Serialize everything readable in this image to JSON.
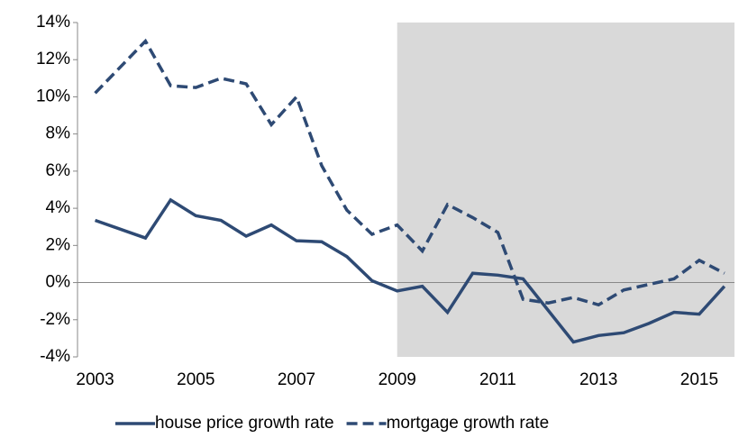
{
  "chart_data": {
    "type": "line",
    "xlim": [
      2002.65,
      2015.7
    ],
    "xticks": [
      2003,
      2005,
      2007,
      2009,
      2011,
      2013,
      2015
    ],
    "ylim": [
      -4,
      14
    ],
    "yticks": [
      {
        "value": -4,
        "label": "-4%"
      },
      {
        "value": -2,
        "label": "-2%"
      },
      {
        "value": 0,
        "label": "0%"
      },
      {
        "value": 2,
        "label": "2%"
      },
      {
        "value": 4,
        "label": "4%"
      },
      {
        "value": 6,
        "label": "6%"
      },
      {
        "value": 8,
        "label": "8%"
      },
      {
        "value": 10,
        "label": "10%"
      },
      {
        "value": 12,
        "label": "12%"
      },
      {
        "value": 14,
        "label": "14%"
      }
    ],
    "shaded_xrange": [
      2009,
      2015.7
    ],
    "shade_color": "#d9d9d9",
    "legend": "bottom",
    "series": [
      {
        "name": "house price growth rate",
        "color": "#2e4a74",
        "dash": false,
        "x": [
          2003,
          2004,
          2004.5,
          2005,
          2005.5,
          2006,
          2006.5,
          2007,
          2007.5,
          2008,
          2008.5,
          2009,
          2009.5,
          2010,
          2010.5,
          2011,
          2011.5,
          2012.5,
          2013,
          2013.5,
          2014,
          2014.5,
          2015,
          2015.5
        ],
        "values": [
          3.35,
          2.4,
          4.45,
          3.6,
          3.35,
          2.5,
          3.1,
          2.25,
          2.2,
          1.4,
          0.1,
          -0.45,
          -0.2,
          -1.6,
          0.5,
          0.4,
          0.2,
          -3.2,
          -2.85,
          -2.7,
          -2.2,
          -1.6,
          -1.7,
          -0.2
        ]
      },
      {
        "name": "mortgage growth rate",
        "color": "#2e4a74",
        "dash": true,
        "x": [
          2003,
          2004,
          2004.5,
          2005,
          2005.5,
          2006,
          2006.5,
          2007,
          2007.5,
          2008,
          2008.5,
          2009,
          2009.5,
          2010,
          2010.5,
          2011,
          2011.5,
          2012,
          2012.5,
          2013,
          2013.5,
          2014,
          2014.5,
          2015,
          2015.5
        ],
        "values": [
          10.2,
          13.0,
          10.6,
          10.5,
          11.0,
          10.7,
          8.5,
          10.0,
          6.3,
          3.9,
          2.6,
          3.1,
          1.7,
          4.2,
          3.5,
          2.7,
          -0.9,
          -1.1,
          -0.8,
          -1.2,
          -0.4,
          -0.1,
          0.2,
          1.2,
          0.5
        ]
      }
    ]
  }
}
